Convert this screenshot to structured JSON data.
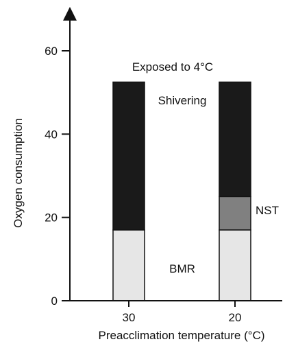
{
  "chart_data": {
    "type": "bar",
    "stacked": true,
    "title": "",
    "xlabel": "Preacclimation temperature (°C)",
    "ylabel": "Oxygen consumption",
    "ylim": [
      0,
      65
    ],
    "yticks": [
      0,
      20,
      40,
      60
    ],
    "categories": [
      "30",
      "20"
    ],
    "series": [
      {
        "name": "BMR",
        "values": [
          17,
          17
        ],
        "color": "#e6e6e6"
      },
      {
        "name": "NST",
        "values": [
          0,
          8
        ],
        "color": "#808080"
      },
      {
        "name": "Shivering",
        "values": [
          35.5,
          27.5
        ],
        "color": "#1a1a1a"
      }
    ],
    "annotations": {
      "exposure": "Exposed to 4°C",
      "shivering": "Shivering",
      "nst": "NST",
      "bmr": "BMR"
    },
    "grid": false,
    "legend": "none (inline labels)"
  }
}
